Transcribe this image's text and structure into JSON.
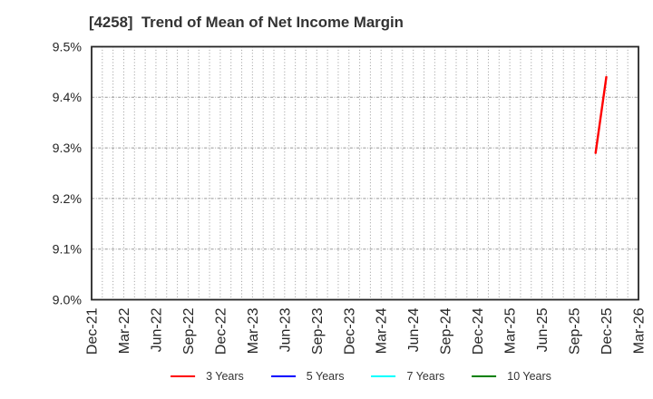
{
  "chart_data": {
    "type": "line",
    "title": "[4258]  Trend of Mean of Net Income Margin",
    "ylim": [
      9.0,
      9.5
    ],
    "yticks": [
      {
        "value": 9.0,
        "label": "9.0%"
      },
      {
        "value": 9.1,
        "label": "9.1%"
      },
      {
        "value": 9.2,
        "label": "9.2%"
      },
      {
        "value": 9.3,
        "label": "9.3%"
      },
      {
        "value": 9.4,
        "label": "9.4%"
      },
      {
        "value": 9.5,
        "label": "9.5%"
      }
    ],
    "x_axis": {
      "start": "Dec-21",
      "end": "Mar-26",
      "minor_grid": "monthly",
      "tick_labels": [
        "Dec-21",
        "Mar-22",
        "Jun-22",
        "Sep-22",
        "Dec-22",
        "Mar-23",
        "Jun-23",
        "Sep-23",
        "Dec-23",
        "Mar-24",
        "Jun-24",
        "Sep-24",
        "Dec-24",
        "Mar-25",
        "Jun-25",
        "Sep-25",
        "Dec-25",
        "Mar-26"
      ]
    },
    "grid": true,
    "legend_position": "bottom",
    "series": [
      {
        "name": "3 Years",
        "color": "#ff0000",
        "points": [
          {
            "x": "Nov-25",
            "y": 9.29
          },
          {
            "x": "Dec-25",
            "y": 9.44
          }
        ]
      },
      {
        "name": "5 Years",
        "color": "#0000ff",
        "points": []
      },
      {
        "name": "7 Years",
        "color": "#00ffff",
        "points": []
      },
      {
        "name": "10 Years",
        "color": "#008000",
        "points": []
      }
    ]
  }
}
